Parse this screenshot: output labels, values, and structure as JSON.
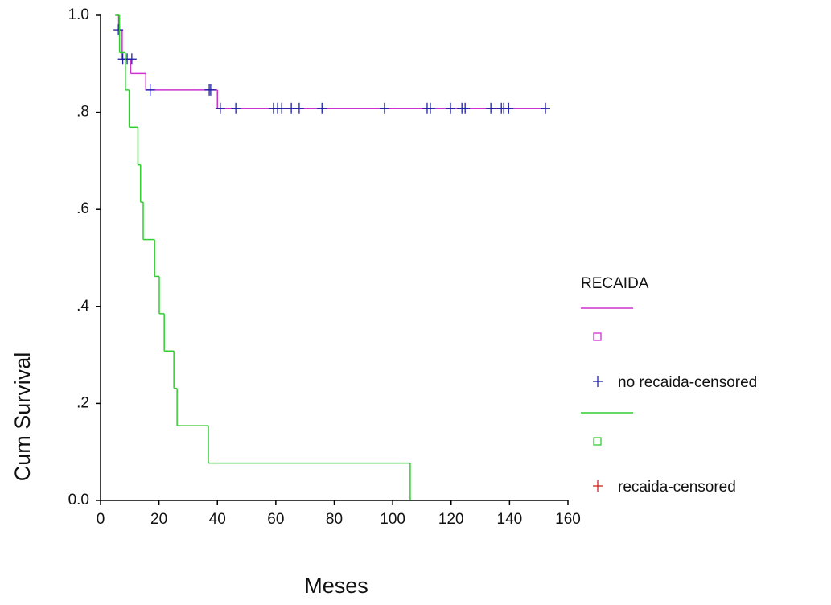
{
  "chart_data": {
    "type": "step",
    "x_label": "Meses",
    "y_label": "Cum Survival",
    "legend_title": "RECAIDA",
    "xlim": [
      0,
      160
    ],
    "xticks": [
      0,
      20,
      40,
      60,
      80,
      100,
      120,
      140,
      160
    ],
    "ylim": [
      0,
      1
    ],
    "yticks": [
      {
        "value": 0,
        "label": "0.0"
      },
      {
        "value": 0.2,
        "label": ".2"
      },
      {
        "value": 0.4,
        "label": ".4"
      },
      {
        "value": 0.6,
        "label": ".6"
      },
      {
        "value": 0.8,
        "label": ".8"
      },
      {
        "value": 1,
        "label": "1.0"
      }
    ],
    "series": [
      {
        "color": "#cc33cc",
        "mark": "step",
        "x": [
          5.5,
          6.2,
          7.4,
          10.3,
          15.5,
          40,
          152.3
        ],
        "values": [
          1.0,
          0.97,
          0.91,
          0.88,
          0.846,
          0.808,
          0.808
        ]
      },
      {
        "name": "no recaida-censored",
        "color": "#1f1fa8",
        "mark": "plus",
        "x": [
          6.1,
          7.6,
          9.1,
          10.7,
          17,
          37.2,
          37.7,
          41,
          46.3,
          59.2,
          60.6,
          62,
          65.3,
          68,
          75.8,
          97.2,
          111.8,
          112.9,
          119.8,
          123.7,
          124.8,
          133.6,
          137.2,
          138,
          139.7,
          152.3
        ],
        "values": [
          0.97,
          0.91,
          0.91,
          0.91,
          0.846,
          0.846,
          0.846,
          0.808,
          0.808,
          0.808,
          0.808,
          0.808,
          0.808,
          0.808,
          0.808,
          0.808,
          0.808,
          0.808,
          0.808,
          0.808,
          0.808,
          0.808,
          0.808,
          0.808,
          0.808,
          0.808
        ]
      },
      {
        "color": "#33cc33",
        "mark": "step",
        "x": [
          5,
          6.5,
          8.5,
          9.8,
          12.8,
          13.7,
          14.6,
          18.5,
          20.1,
          21.8,
          25.1,
          26.2,
          36.9,
          106
        ],
        "values": [
          1.0,
          0.923,
          0.846,
          0.769,
          0.692,
          0.615,
          0.538,
          0.462,
          0.385,
          0.308,
          0.231,
          0.154,
          0.077,
          0
        ]
      },
      {
        "name": "recaida-censored",
        "color": "#cc2222",
        "mark": "plus",
        "x": [],
        "values": []
      }
    ]
  }
}
